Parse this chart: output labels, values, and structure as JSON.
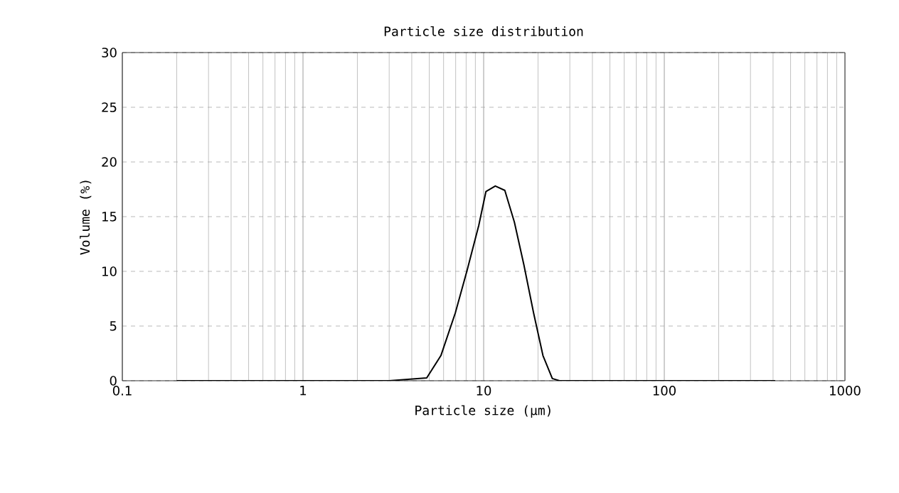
{
  "chart_data": {
    "type": "line",
    "title": "Particle size distribution",
    "xlabel": "Particle size (μm)",
    "ylabel": "Volume (%)",
    "log": "x",
    "xlim": [
      0.1,
      1000
    ],
    "xticks": [
      0.1,
      1,
      10,
      100,
      1000
    ],
    "ylim": [
      0,
      30
    ],
    "yticks": [
      0,
      5,
      10,
      15,
      20,
      25,
      30
    ],
    "grid": true,
    "marker": "none",
    "line_style": "solid",
    "series": [
      {
        "color": "#000000",
        "x": [
          0.2,
          1,
          3.0,
          4.84,
          5.8,
          6.97,
          8.1,
          9.4,
          10.3,
          11.6,
          13.1,
          14.8,
          16.7,
          18.9,
          21.3,
          24.0,
          26.3,
          100,
          411
        ],
        "values": [
          0,
          0,
          0,
          0.26,
          2.3,
          6.2,
          10.1,
          14.2,
          17.3,
          17.8,
          17.4,
          14.5,
          10.6,
          6.2,
          2.3,
          0.2,
          0,
          0,
          0
        ]
      }
    ]
  }
}
